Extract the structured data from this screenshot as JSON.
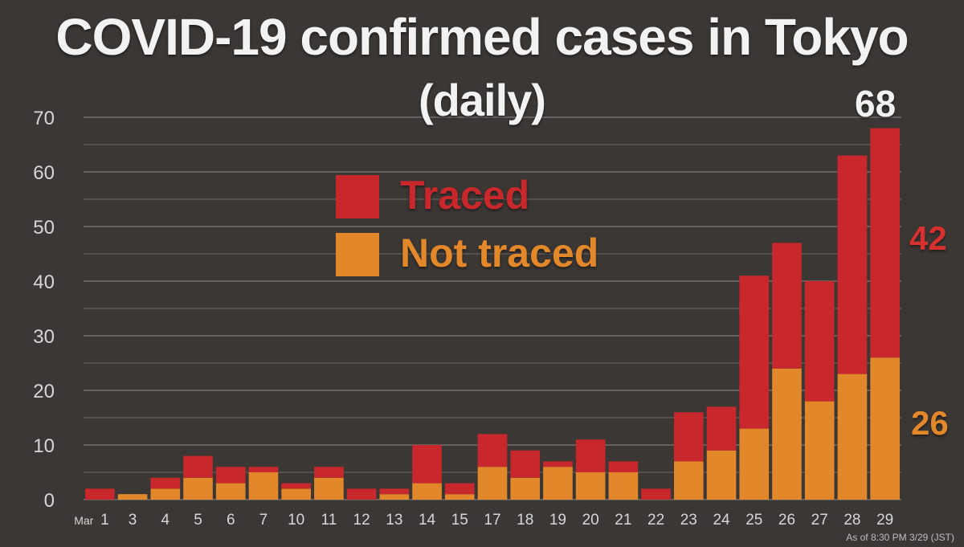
{
  "chart_data": {
    "type": "bar",
    "stacked": true,
    "title": "COVID-19 confirmed cases in Tokyo",
    "subtitle": "(daily)",
    "month_label": "Mar",
    "categories": [
      "1",
      "3",
      "4",
      "5",
      "6",
      "7",
      "10",
      "11",
      "12",
      "13",
      "14",
      "15",
      "17",
      "18",
      "19",
      "20",
      "21",
      "22",
      "23",
      "24",
      "25",
      "26",
      "27",
      "28",
      "29"
    ],
    "series": [
      {
        "name": "Not traced",
        "color": "#e2872a",
        "values": [
          0,
          1,
          2,
          4,
          3,
          5,
          2,
          4,
          0,
          1,
          3,
          1,
          6,
          4,
          6,
          5,
          5,
          0,
          7,
          9,
          13,
          24,
          18,
          23,
          26
        ]
      },
      {
        "name": "Traced",
        "color": "#c8282b",
        "values": [
          2,
          0,
          2,
          4,
          3,
          1,
          1,
          2,
          2,
          1,
          7,
          2,
          6,
          5,
          1,
          6,
          2,
          2,
          9,
          8,
          28,
          23,
          22,
          40,
          42
        ]
      }
    ],
    "ylim": [
      0,
      70
    ],
    "yticks": [
      "0",
      "10",
      "20",
      "30",
      "40",
      "50",
      "60",
      "70"
    ],
    "grid": true,
    "legend_position": "top-center",
    "annotations": {
      "total_last": "68",
      "traced_last": "42",
      "not_traced_last": "26"
    },
    "footnote": "As of 8:30 PM 3/29 (JST)"
  },
  "colors": {
    "background": "#3b3735",
    "grid": "#8a8684",
    "traced": "#c8282b",
    "not_traced": "#e2872a",
    "text": "#f2f2f2"
  }
}
